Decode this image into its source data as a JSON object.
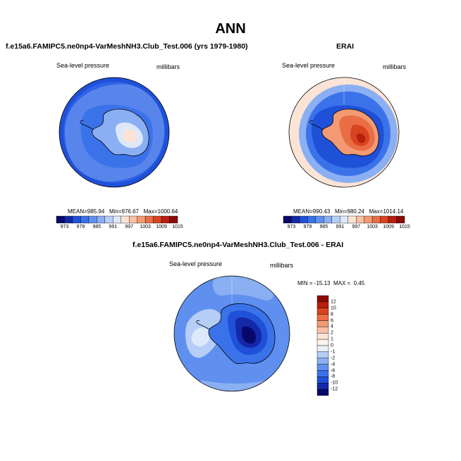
{
  "page": {
    "title": "ANN"
  },
  "chart_data": [
    {
      "type": "heatmap",
      "projection": "south-polar-stereographic",
      "title": "f.e15a6.FAMIPC5.ne0np4-VarMeshNH3.Club_Test.006 (yrs 1979-1980)",
      "field_label": "Sea-level pressure",
      "units": "millibars",
      "stats": {
        "mean_label": "MEAN=",
        "mean": "985.94",
        "min_label": "Min=",
        "min": "976.67",
        "max_label": "Max=",
        "max": "1000.64"
      },
      "colorbar_levels": [
        "973",
        "979",
        "985",
        "991",
        "997",
        "1003",
        "1009",
        "1015"
      ],
      "colorbar_colors": [
        "#08086b",
        "#1428a8",
        "#1f50d8",
        "#3a72ea",
        "#5f90f0",
        "#8aaff2",
        "#b6cdf6",
        "#dde8fa",
        "#fbe3d6",
        "#f8c0a4",
        "#f29a74",
        "#e96e46",
        "#d84420",
        "#b81f0c",
        "#8b0a06"
      ]
    },
    {
      "type": "heatmap",
      "projection": "south-polar-stereographic",
      "title": "ERAI",
      "field_label": "Sea-level pressure",
      "units": "millibars",
      "stats": {
        "mean_label": "MEAN=",
        "mean": "990.43",
        "min_label": "Min=",
        "min": "980.24",
        "max_label": "Max=",
        "max": "1014.14"
      },
      "colorbar_levels": [
        "973",
        "979",
        "985",
        "991",
        "997",
        "1003",
        "1009",
        "1015"
      ]
    },
    {
      "type": "heatmap",
      "projection": "south-polar-stereographic",
      "title": "f.e15a6.FAMIPC5.ne0np4-VarMeshNH3.Club_Test.006 - ERAI",
      "field_label": "Sea-level pressure",
      "units": "millibars",
      "stats": {
        "min_label": "MIN =",
        "min": "-15.13",
        "max_label": "MAX =",
        "max": "0.45"
      },
      "colorbar_levels": [
        "12",
        "10",
        "8",
        "6",
        "4",
        "2",
        "1",
        "0",
        "-1",
        "-2",
        "-4",
        "-6",
        "-8",
        "-10",
        "-12"
      ],
      "colorbar_colors": [
        "#8b0a06",
        "#b81f0c",
        "#d84420",
        "#e96e46",
        "#f29a74",
        "#f8c0a4",
        "#fbe3d6",
        "#fdf3ee",
        "#e9f0fb",
        "#b6cdf6",
        "#8aaff2",
        "#5f90f0",
        "#3a72ea",
        "#1f50d8",
        "#1428a8",
        "#08086b"
      ]
    }
  ]
}
